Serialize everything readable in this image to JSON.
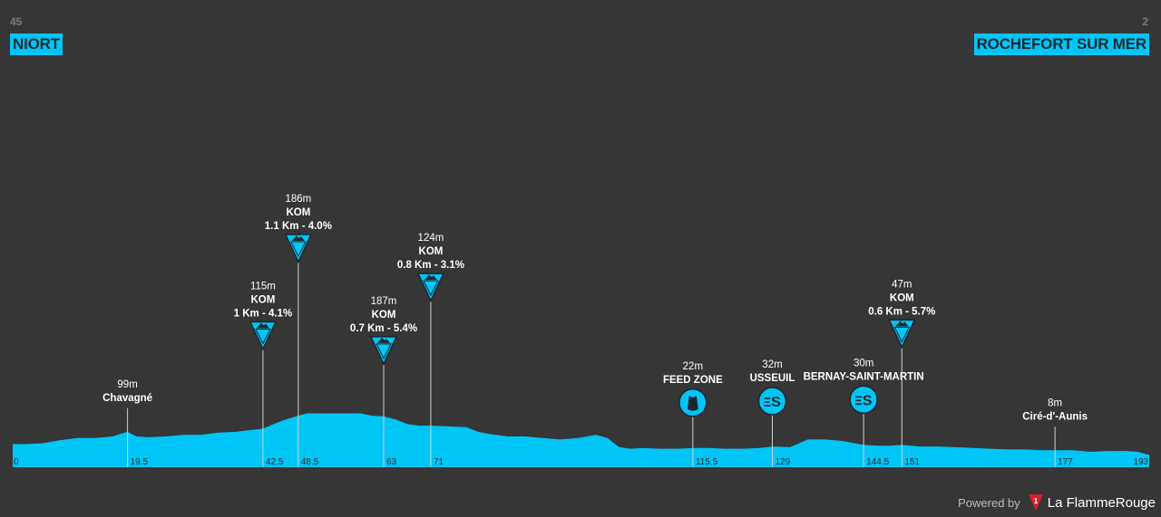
{
  "start": {
    "km_to_go_label": "45",
    "city": "NIORT"
  },
  "finish": {
    "km_to_go_label": "2",
    "city": "ROCHEFORT SUR MER"
  },
  "footer": {
    "powered_by": "Powered by",
    "brand": "La FlammeRouge"
  },
  "colors": {
    "background": "#363636",
    "profile_fill": "#00c6f7",
    "accent": "#00c6f7",
    "logo_red": "#d6202e"
  },
  "chart_data": {
    "type": "area",
    "title": "",
    "xlabel": "",
    "ylabel": "",
    "x_unit": "km",
    "y_unit": "m",
    "xlim": [
      0,
      193
    ],
    "ylim": [
      0,
      200
    ],
    "distance_labels": [
      "0",
      "19.5",
      "42.5",
      "48.5",
      "63",
      "71",
      "115.5",
      "129",
      "144.5",
      "151",
      "177",
      "193"
    ],
    "profile": {
      "x": [
        0,
        2,
        5,
        8,
        11,
        14,
        17,
        19.5,
        21,
        23,
        26,
        29,
        32,
        35,
        38,
        40,
        42.5,
        44,
        46,
        48.5,
        50,
        53,
        56,
        59,
        61,
        63,
        65,
        67,
        69,
        71,
        74,
        77,
        79,
        81,
        84,
        87,
        90,
        93,
        96,
        99,
        101,
        103,
        105,
        107,
        110,
        113,
        115.5,
        118,
        121,
        124,
        127,
        129,
        132,
        135,
        138,
        141,
        144.5,
        147,
        149,
        151,
        154,
        157,
        160,
        163,
        166,
        169,
        172,
        175,
        177,
        180,
        183,
        186,
        189,
        191,
        193
      ],
      "y": [
        30,
        30,
        31,
        35,
        38,
        38,
        40,
        46,
        40,
        39,
        40,
        42,
        42,
        45,
        46,
        48,
        50,
        55,
        61,
        67,
        70,
        70,
        70,
        70,
        67,
        66,
        62,
        56,
        54,
        54,
        53,
        52,
        46,
        43,
        40,
        40,
        38,
        36,
        38,
        42,
        38,
        26,
        24,
        25,
        24,
        24,
        25,
        25,
        24,
        24,
        25,
        27,
        26,
        36,
        36,
        34,
        29,
        28,
        28,
        29,
        27,
        27,
        26,
        25,
        24,
        23,
        23,
        22,
        22,
        22,
        20,
        21,
        21,
        20,
        16
      ]
    },
    "markers": [
      {
        "km": 19.5,
        "kind": "place",
        "alt_label": "99m",
        "name": "Chavagné"
      },
      {
        "km": 42.5,
        "kind": "kom",
        "alt_label": "115m",
        "name": "KOM",
        "detail": "1 Km - 4.1%"
      },
      {
        "km": 48.5,
        "kind": "kom",
        "alt_label": "186m",
        "name": "KOM",
        "detail": "1.1 Km - 4.0%"
      },
      {
        "km": 63,
        "kind": "kom",
        "alt_label": "187m",
        "name": "KOM",
        "detail": "0.7 Km - 5.4%"
      },
      {
        "km": 71,
        "kind": "kom",
        "alt_label": "124m",
        "name": "KOM",
        "detail": "0.8 Km - 3.1%"
      },
      {
        "km": 115.5,
        "kind": "feed",
        "alt_label": "22m",
        "name": "FEED ZONE"
      },
      {
        "km": 129,
        "kind": "sprint",
        "alt_label": "32m",
        "name": "USSEUIL"
      },
      {
        "km": 144.5,
        "kind": "sprint",
        "alt_label": "30m",
        "name": "BERNAY-SAINT-MARTIN"
      },
      {
        "km": 151,
        "kind": "kom",
        "alt_label": "47m",
        "name": "KOM",
        "detail": "0.6 Km - 5.7%"
      },
      {
        "km": 177,
        "kind": "place",
        "alt_label": "8m",
        "name": "Ciré-d'-Aunis"
      }
    ]
  }
}
